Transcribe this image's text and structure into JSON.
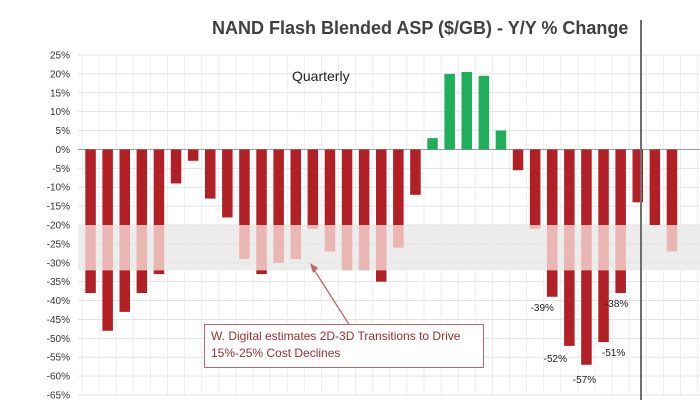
{
  "chart_data": {
    "type": "bar",
    "title": "NAND Flash Blended ASP ($/GB) - Y/Y % Change",
    "subtitle": "Quarterly",
    "xlabel": "",
    "ylabel": "",
    "ylim": [
      -65,
      25
    ],
    "y_tick_labels": [
      "25%",
      "20%",
      "15%",
      "10%",
      "5%",
      "0%",
      "-5%",
      "-10%",
      "-15%",
      "-20%",
      "-25%",
      "-30%",
      "-35%",
      "-40%",
      "-45%",
      "-50%",
      "-55%",
      "-60%",
      "-65%"
    ],
    "grid": true,
    "shaded_band": {
      "from": -20,
      "to": -32,
      "color": "#ececec"
    },
    "values": [
      -38,
      -48,
      -43,
      -38,
      -33,
      -9,
      -3,
      -13,
      -18,
      -29,
      -33,
      -30,
      -29,
      -21,
      -27,
      -32,
      -32,
      -35,
      -26,
      -12,
      3,
      20,
      20.5,
      19.5,
      5,
      -5.5,
      -21,
      -39,
      -52,
      -57,
      -51,
      -38,
      -14,
      -20,
      -27
    ],
    "data_labels": [
      {
        "index": 27,
        "text": "-39%"
      },
      {
        "index": 28,
        "text": "-52%"
      },
      {
        "index": 29,
        "text": "-57%"
      },
      {
        "index": 30,
        "text": "-51%"
      },
      {
        "index": 31,
        "text": "-38%"
      }
    ],
    "colors": {
      "negative": "#b21f24",
      "negative_light": "#e9b6b3",
      "positive": "#1fae59"
    },
    "annotation": "W. Digital estimates 2D-3D Transitions to Drive 15%-25% Cost Declines"
  }
}
